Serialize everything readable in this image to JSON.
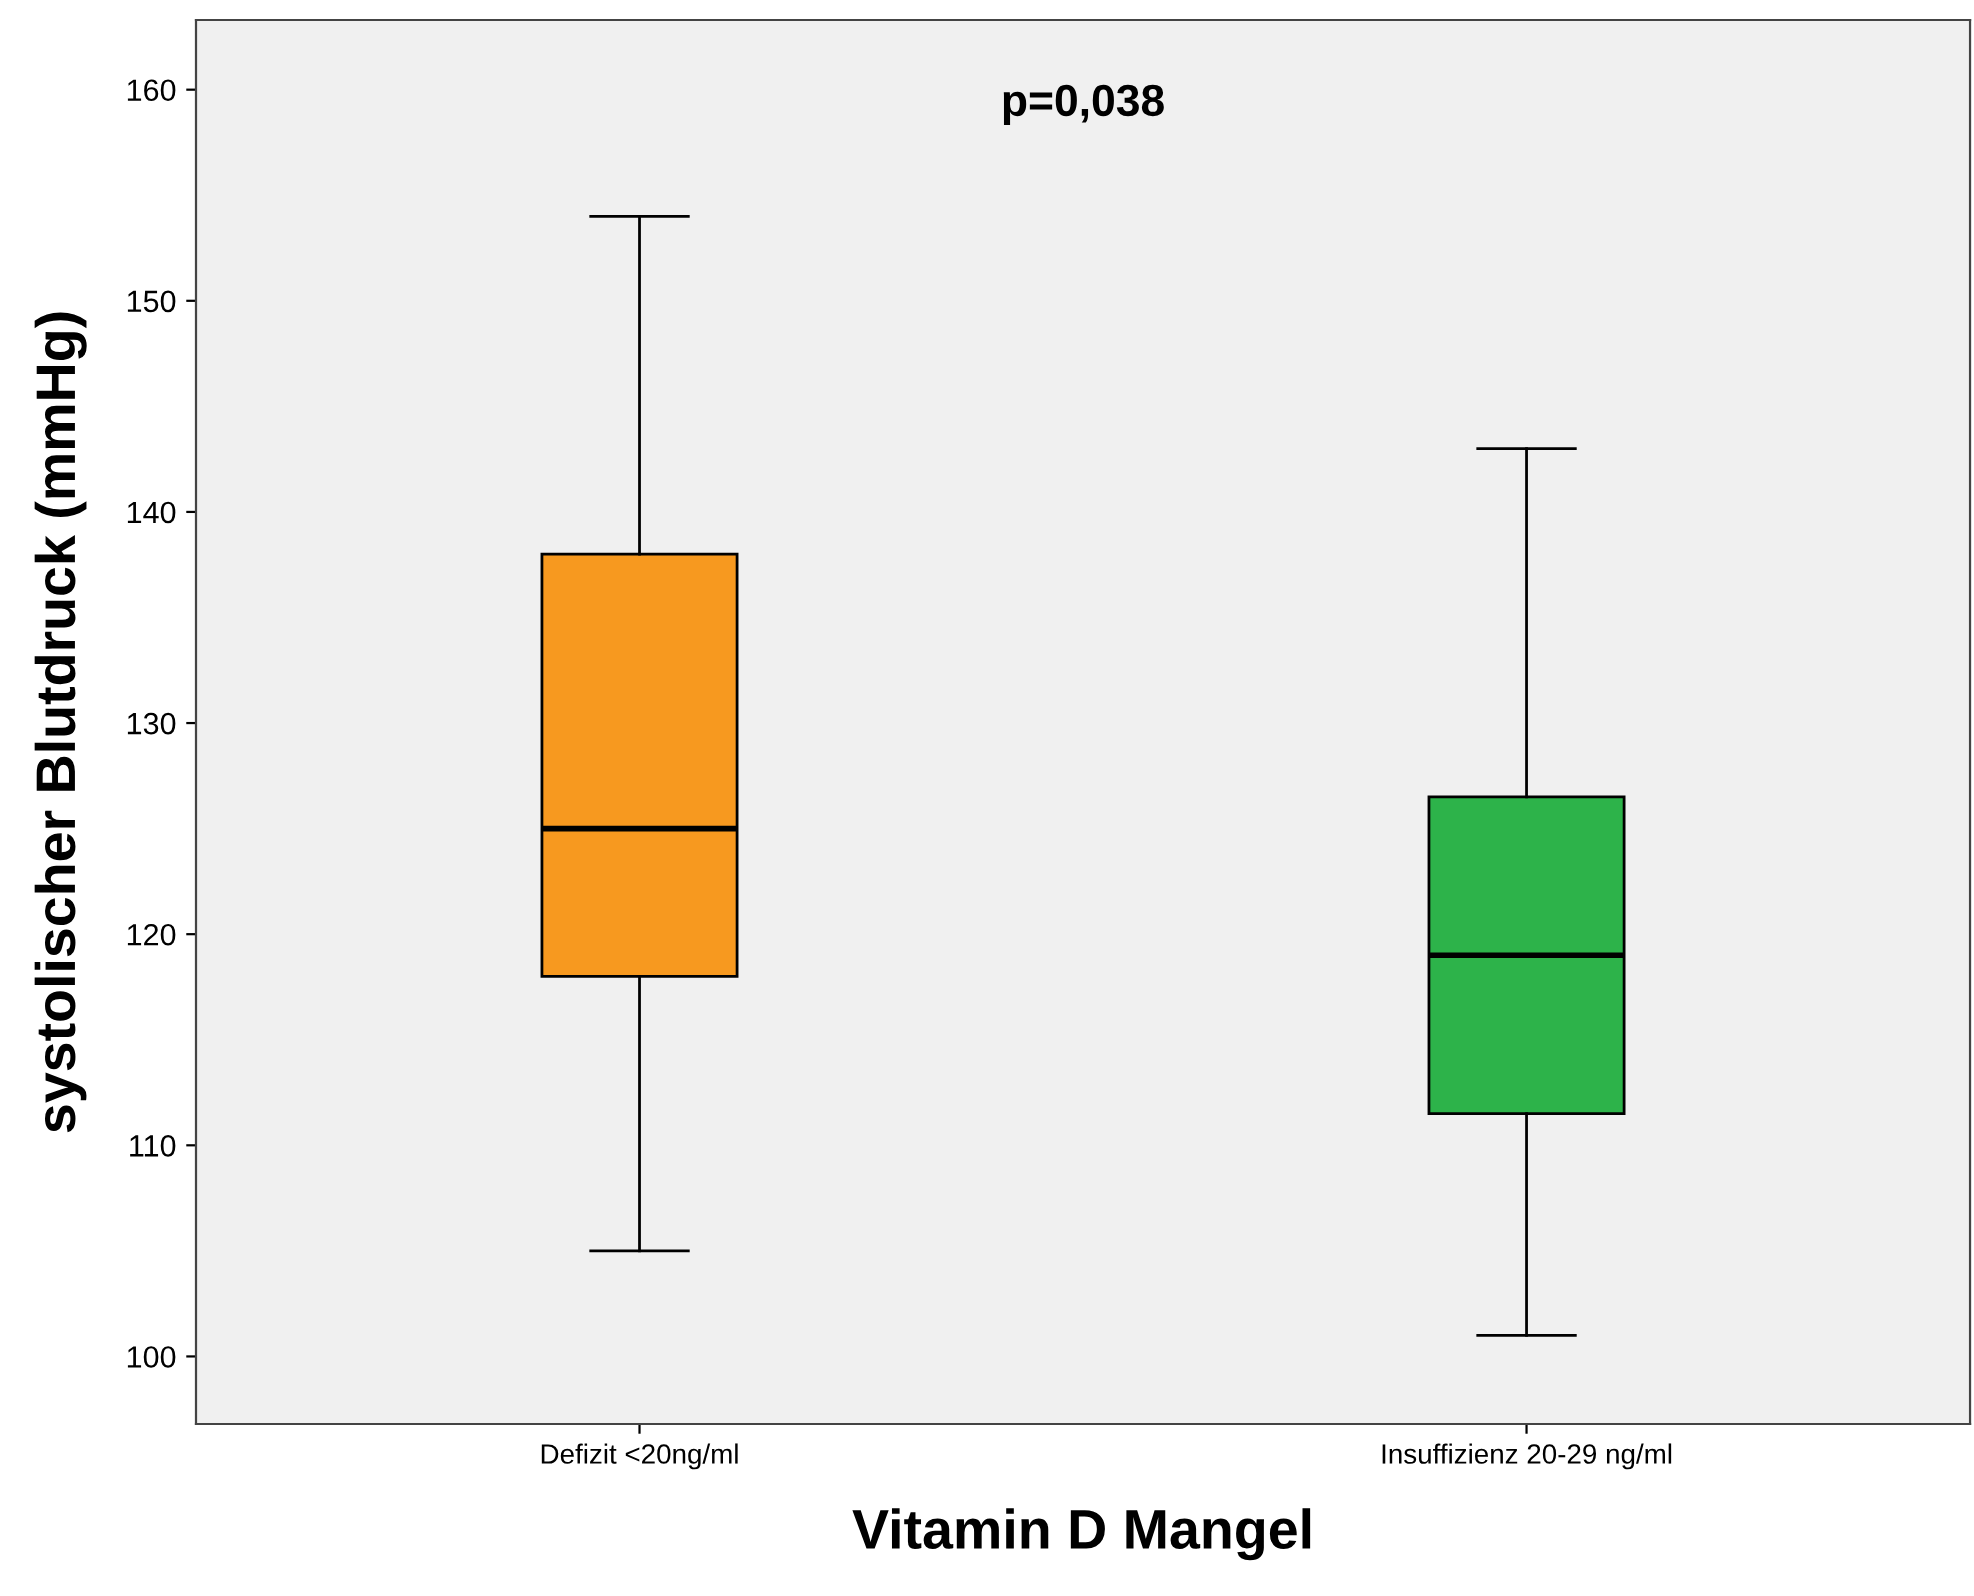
{
  "chart_data": {
    "type": "box",
    "xlabel": "Vitamin D Mangel",
    "ylabel": "systolischer Blutdruck (mmHg)",
    "categories": [
      "Defizit <20ng/ml",
      "Insuffizienz 20-29 ng/ml"
    ],
    "colors": [
      "#f7991f",
      "#2db34a"
    ],
    "boxes": [
      {
        "low": 105,
        "q1": 118,
        "median": 125,
        "q3": 138,
        "high": 154
      },
      {
        "low": 101,
        "q1": 111.5,
        "median": 119,
        "q3": 126.5,
        "high": 143
      }
    ],
    "ylim": [
      96.8,
      163.3
    ],
    "yticks": [
      100,
      110,
      120,
      130,
      140,
      150,
      160
    ],
    "annotations": [
      "p=0,038"
    ],
    "grid": false,
    "legend": false
  }
}
